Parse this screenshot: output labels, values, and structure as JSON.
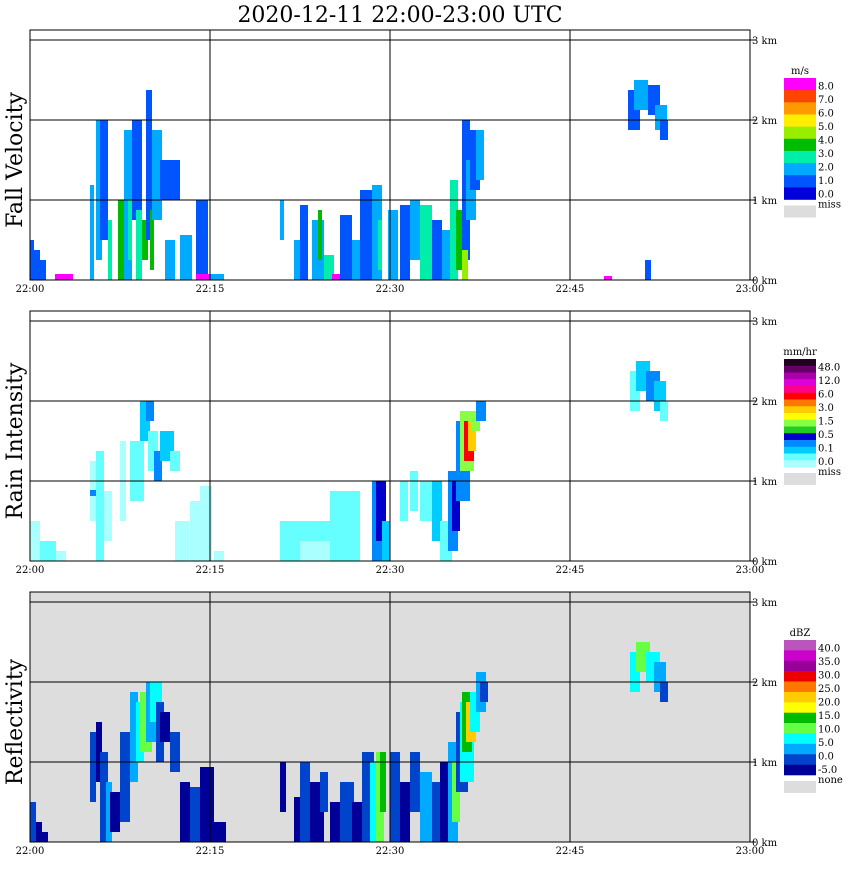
{
  "title": "2020-12-11   22:00-23:00 UTC",
  "x_ticks": [
    "22:00",
    "22:15",
    "22:30",
    "22:45",
    "23:00"
  ],
  "y_ticks": [
    "0 km",
    "1 km",
    "2 km",
    "3 km"
  ],
  "panels": [
    {
      "label": "Fall Velocity",
      "background": "#ffffff",
      "colorbar": {
        "unit": "m/s",
        "labels": [
          "8.0",
          "7.0",
          "6.0",
          "5.0",
          "4.0",
          "3.0",
          "2.0",
          "1.0",
          "0.0"
        ],
        "colors": [
          "#ff00ff",
          "#ff4400",
          "#ff9900",
          "#ffee00",
          "#99ee00",
          "#00bb00",
          "#00eeaa",
          "#00aaff",
          "#0055ff",
          "#0000dd"
        ],
        "miss_label": "miss",
        "miss_color": "#dddddd"
      }
    },
    {
      "label": "Rain Intensity",
      "background": "#ffffff",
      "colorbar": {
        "unit": "mm/hr",
        "labels": [
          "48.0",
          "12.0",
          "6.0",
          "3.0",
          "1.5",
          "0.5",
          "0.1",
          "0.0"
        ],
        "colors": [
          "#220022",
          "#660066",
          "#aa00aa",
          "#dd00dd",
          "#ff0088",
          "#ff0000",
          "#ff7700",
          "#ffcc00",
          "#ffff00",
          "#88ff44",
          "#22cc22",
          "#0000cc",
          "#0088ff",
          "#00ccff",
          "#66ffff",
          "#aaffff"
        ],
        "miss_label": "miss",
        "miss_color": "#dddddd"
      }
    },
    {
      "label": "Reflectivity",
      "background": "#dddddd",
      "colorbar": {
        "unit": "dBZ",
        "labels": [
          "40.0",
          "35.0",
          "30.0",
          "25.0",
          "20.0",
          "15.0",
          "10.0",
          "5.0",
          "0.0",
          "-5.0"
        ],
        "colors": [
          "#bb55bb",
          "#cc00cc",
          "#990099",
          "#ee0000",
          "#ff7700",
          "#ffcc00",
          "#ffff00",
          "#00bb00",
          "#66ff44",
          "#00ffff",
          "#00aaff",
          "#0044cc",
          "#000099"
        ],
        "miss_label": "none",
        "miss_color": "#dddddd"
      }
    }
  ],
  "chart_data": [
    {
      "type": "heatmap",
      "variable": "Fall Velocity",
      "unit": "m/s",
      "xlim": [
        "22:00",
        "23:00"
      ],
      "ylim_km": [
        0,
        3.2
      ],
      "features": [
        {
          "x": [
            "22:00",
            "22:03"
          ],
          "top_km": 0.5,
          "values": "1.0-2.0"
        },
        {
          "x": [
            "22:03",
            "22:07"
          ],
          "top_km": 1.5,
          "values": "1.0-2.0"
        },
        {
          "x": [
            "22:07",
            "22:12"
          ],
          "top_km": 2.4,
          "values": "1.0-4.0"
        },
        {
          "x": [
            "22:12",
            "22:15"
          ],
          "top_km": 1.0,
          "values": "1.0-3.0"
        },
        {
          "x": [
            "22:21",
            "22:26"
          ],
          "top_km": 1.2,
          "values": "1.0-3.0"
        },
        {
          "x": [
            "22:26",
            "22:31"
          ],
          "top_km": 1.2,
          "values": "1.0-3.0"
        },
        {
          "x": [
            "22:31",
            "22:38"
          ],
          "top_km": 1.9,
          "values": "2.0-5.0"
        },
        {
          "x": [
            "22:50",
            "22:53"
          ],
          "range_km": [
            2.0,
            2.6
          ],
          "values": "1.0-2.0"
        }
      ]
    },
    {
      "type": "heatmap",
      "variable": "Rain Intensity",
      "unit": "mm/hr",
      "xlim": [
        "22:00",
        "23:00"
      ],
      "ylim_km": [
        0,
        3.2
      ],
      "features": [
        {
          "x": [
            "22:00",
            "22:15"
          ],
          "top_km": 2.4,
          "values": "0.1-1.5"
        },
        {
          "x": [
            "22:21",
            "22:31"
          ],
          "top_km": 1.2,
          "values": "0.1-0.5"
        },
        {
          "x": [
            "22:31",
            "22:38"
          ],
          "top_km": 1.9,
          "values": "0.1-6.0"
        },
        {
          "x": [
            "22:50",
            "22:53"
          ],
          "range_km": [
            2.0,
            2.6
          ],
          "values": "0.1-1.5"
        }
      ]
    },
    {
      "type": "heatmap",
      "variable": "Reflectivity",
      "unit": "dBZ",
      "xlim": [
        "22:00",
        "23:00"
      ],
      "ylim_km": [
        0,
        3.2
      ],
      "features": [
        {
          "x": [
            "22:00",
            "22:15"
          ],
          "top_km": 2.4,
          "values": "-5.0-15.0"
        },
        {
          "x": [
            "22:21",
            "22:31"
          ],
          "top_km": 1.2,
          "values": "-5.0-15.0"
        },
        {
          "x": [
            "22:31",
            "22:38"
          ],
          "top_km": 1.9,
          "values": "0.0-25.0"
        },
        {
          "x": [
            "22:50",
            "22:53"
          ],
          "range_km": [
            2.0,
            2.6
          ],
          "values": "0.0-10.0"
        }
      ]
    }
  ]
}
